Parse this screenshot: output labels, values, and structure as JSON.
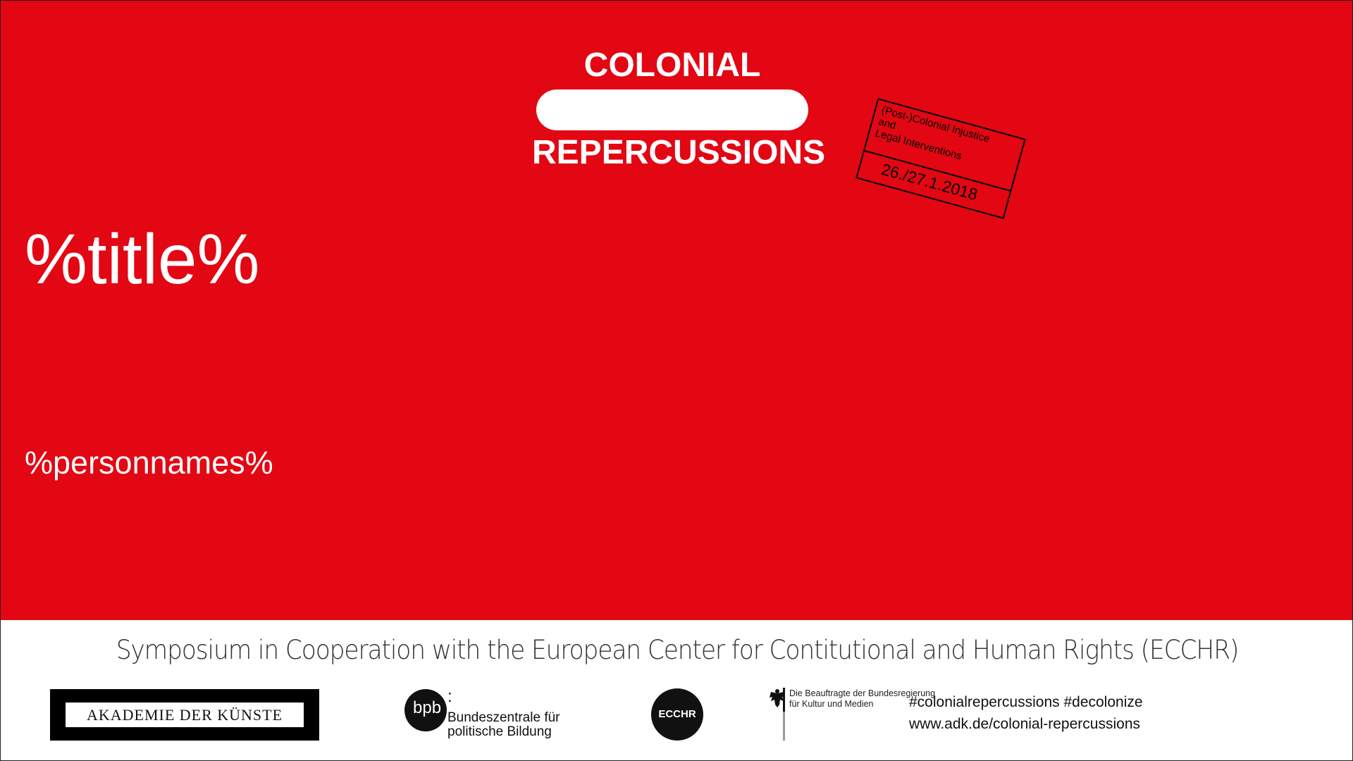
{
  "colors": {
    "brand_red": "#e30613",
    "white": "#ffffff",
    "black": "#111111"
  },
  "header": {
    "logo_top": "COLONIAL",
    "logo_bottom": "REPERCUSSIONS",
    "stamp": {
      "subtitle_line1": "(Post-)Colonial Injustice",
      "subtitle_line2": "and",
      "subtitle_line3": "Legal Interventions",
      "date": "26./27.1.2018"
    }
  },
  "main": {
    "title": "%title%",
    "personnames": "%personnames%"
  },
  "footer": {
    "cooperation": "Symposium in Cooperation with the European Center for Contitutional and Human Rights (ECCHR)",
    "logos": {
      "adk": "AKADEMIE DER KÜNSTE",
      "bpb_mark": "bpb",
      "bpb_colon": ":",
      "bpb_line1": "Bundeszentrale für",
      "bpb_line2": "politische Bildung",
      "ecchr": "ECCHR",
      "bkm_line1": "Die Beauftragte der Bundesregierung",
      "bkm_line2": "für Kultur und Medien",
      "bkm_icon": "federal-eagle-icon"
    },
    "hashtags": "#colonialrepercussions #decolonize",
    "url": "www.adk.de/colonial-repercussions"
  }
}
